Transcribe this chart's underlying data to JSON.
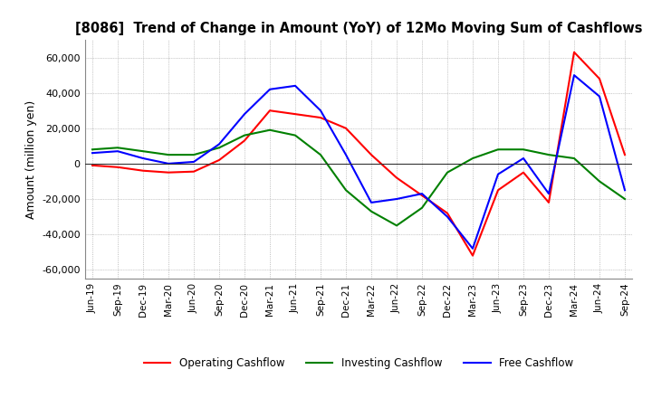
{
  "title": "[8086]  Trend of Change in Amount (YoY) of 12Mo Moving Sum of Cashflows",
  "ylabel": "Amount (million yen)",
  "x_labels": [
    "Jun-19",
    "Sep-19",
    "Dec-19",
    "Mar-20",
    "Jun-20",
    "Sep-20",
    "Dec-20",
    "Mar-21",
    "Jun-21",
    "Sep-21",
    "Dec-21",
    "Mar-22",
    "Jun-22",
    "Sep-22",
    "Dec-22",
    "Mar-23",
    "Jun-23",
    "Sep-23",
    "Dec-23",
    "Mar-24",
    "Jun-24",
    "Sep-24"
  ],
  "operating": [
    -1000,
    -2000,
    -4000,
    -5000,
    -4500,
    2000,
    13000,
    30000,
    28000,
    26000,
    20000,
    5000,
    -8000,
    -18000,
    -28000,
    -52000,
    -15000,
    -5000,
    -22000,
    63000,
    48000,
    5000
  ],
  "investing": [
    8000,
    9000,
    7000,
    5000,
    5000,
    9000,
    16000,
    19000,
    16000,
    5000,
    -15000,
    -27000,
    -35000,
    -25000,
    -5000,
    3000,
    8000,
    8000,
    5000,
    3000,
    -10000,
    -20000
  ],
  "free": [
    6000,
    7000,
    3000,
    0,
    1000,
    11000,
    28000,
    42000,
    44000,
    30000,
    5000,
    -22000,
    -20000,
    -17000,
    -30000,
    -48000,
    -6000,
    3000,
    -17000,
    50000,
    38000,
    -15000
  ],
  "operating_color": "#ff0000",
  "investing_color": "#008000",
  "free_color": "#0000ff",
  "background_color": "#ffffff",
  "grid_color": "#aaaaaa",
  "ylim": [
    -65000,
    70000
  ],
  "yticks": [
    -60000,
    -40000,
    -20000,
    0,
    20000,
    40000,
    60000
  ]
}
